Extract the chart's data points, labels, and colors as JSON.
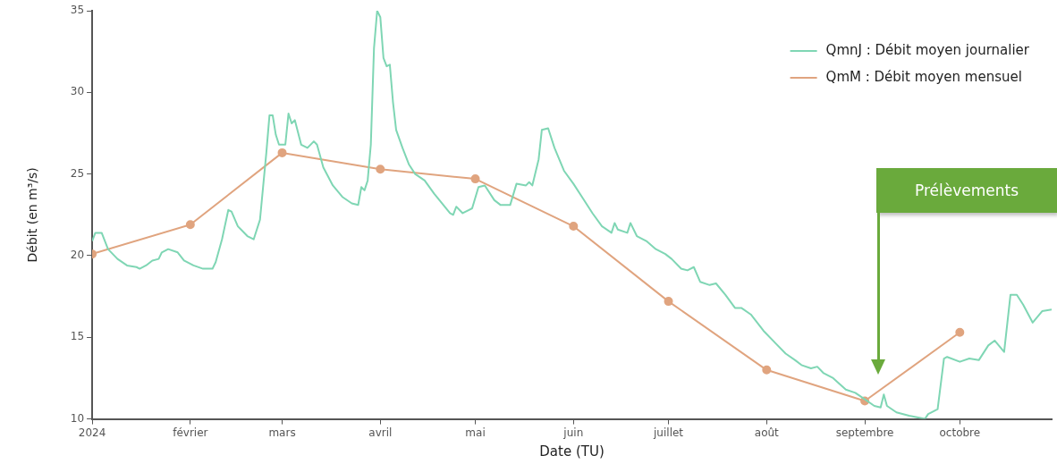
{
  "chart_data": {
    "type": "line",
    "xlabel": "Date (TU)",
    "ylabel": "Débit (en m³/s)",
    "xlim": [
      "2024-01-01",
      "2024-10-30"
    ],
    "xticks": [
      {
        "value": "2024-01-01",
        "label": "2024"
      },
      {
        "value": "2024-02-01",
        "label": "février"
      },
      {
        "value": "2024-03-01",
        "label": "mars"
      },
      {
        "value": "2024-04-01",
        "label": "avril"
      },
      {
        "value": "2024-05-01",
        "label": "mai"
      },
      {
        "value": "2024-06-01",
        "label": "juin"
      },
      {
        "value": "2024-07-01",
        "label": "juillet"
      },
      {
        "value": "2024-08-01",
        "label": "août"
      },
      {
        "value": "2024-09-01",
        "label": "septembre"
      },
      {
        "value": "2024-10-01",
        "label": "octobre"
      }
    ],
    "ylim": [
      10,
      35
    ],
    "yticks": [
      10,
      15,
      20,
      25,
      30,
      35
    ],
    "grid": false,
    "legend": "top right",
    "line_style": "solid",
    "annotations": [
      "Prélèvements"
    ],
    "series": [
      {
        "name": "QmnJ : Débit moyen journalier",
        "color": "#7fd6b4",
        "marker": "none",
        "x": [
          "2024-01-01",
          "2024-01-02",
          "2024-01-04",
          "2024-01-06",
          "2024-01-09",
          "2024-01-12",
          "2024-01-15",
          "2024-01-16",
          "2024-01-18",
          "2024-01-20",
          "2024-01-22",
          "2024-01-23",
          "2024-01-25",
          "2024-01-28",
          "2024-01-30",
          "2024-02-02",
          "2024-02-05",
          "2024-02-08",
          "2024-02-09",
          "2024-02-11",
          "2024-02-13",
          "2024-02-14",
          "2024-02-16",
          "2024-02-19",
          "2024-02-21",
          "2024-02-23",
          "2024-02-25",
          "2024-02-26",
          "2024-02-27",
          "2024-02-28",
          "2024-02-29",
          "2024-03-02",
          "2024-03-03",
          "2024-03-04",
          "2024-03-05",
          "2024-03-07",
          "2024-03-09",
          "2024-03-11",
          "2024-03-12",
          "2024-03-14",
          "2024-03-17",
          "2024-03-20",
          "2024-03-23",
          "2024-03-25",
          "2024-03-26",
          "2024-03-27",
          "2024-03-28",
          "2024-03-29",
          "2024-03-30",
          "2024-03-31",
          "2024-04-01",
          "2024-04-02",
          "2024-04-03",
          "2024-04-04",
          "2024-04-05",
          "2024-04-06",
          "2024-04-08",
          "2024-04-10",
          "2024-04-12",
          "2024-04-15",
          "2024-04-18",
          "2024-04-23",
          "2024-04-24",
          "2024-04-25",
          "2024-04-27",
          "2024-04-29",
          "2024-04-30",
          "2024-05-02",
          "2024-05-04",
          "2024-05-07",
          "2024-05-09",
          "2024-05-12",
          "2024-05-14",
          "2024-05-17",
          "2024-05-18",
          "2024-05-19",
          "2024-05-21",
          "2024-05-22",
          "2024-05-24",
          "2024-05-26",
          "2024-05-29",
          "2024-06-01",
          "2024-06-04",
          "2024-06-07",
          "2024-06-10",
          "2024-06-13",
          "2024-06-14",
          "2024-06-15",
          "2024-06-18",
          "2024-06-19",
          "2024-06-21",
          "2024-06-24",
          "2024-06-27",
          "2024-06-30",
          "2024-07-02",
          "2024-07-05",
          "2024-07-07",
          "2024-07-09",
          "2024-07-11",
          "2024-07-14",
          "2024-07-16",
          "2024-07-19",
          "2024-07-22",
          "2024-07-24",
          "2024-07-27",
          "2024-07-31",
          "2024-08-04",
          "2024-08-07",
          "2024-08-10",
          "2024-08-12",
          "2024-08-15",
          "2024-08-17",
          "2024-08-19",
          "2024-08-22",
          "2024-08-26",
          "2024-08-29",
          "2024-09-01",
          "2024-09-04",
          "2024-09-06",
          "2024-09-07",
          "2024-09-08",
          "2024-09-11",
          "2024-09-15",
          "2024-09-20",
          "2024-09-21",
          "2024-09-22",
          "2024-09-24",
          "2024-09-26",
          "2024-09-27",
          "2024-10-01",
          "2024-10-04",
          "2024-10-07",
          "2024-10-10",
          "2024-10-12",
          "2024-10-15",
          "2024-10-17",
          "2024-10-19",
          "2024-10-21",
          "2024-10-24",
          "2024-10-27",
          "2024-10-30"
        ],
        "values": [
          20.9,
          21.4,
          21.4,
          20.4,
          19.8,
          19.4,
          19.3,
          19.2,
          19.4,
          19.7,
          19.8,
          20.2,
          20.4,
          20.2,
          19.7,
          19.4,
          19.2,
          19.2,
          19.6,
          21.0,
          22.8,
          22.7,
          21.8,
          21.2,
          21.0,
          22.2,
          26.3,
          28.6,
          28.6,
          27.4,
          26.8,
          26.8,
          28.7,
          28.1,
          28.3,
          26.8,
          26.6,
          27.0,
          26.8,
          25.4,
          24.3,
          23.6,
          23.2,
          23.1,
          24.2,
          24.0,
          24.6,
          26.8,
          32.7,
          35.0,
          34.6,
          32.1,
          31.6,
          31.7,
          29.4,
          27.7,
          26.6,
          25.6,
          25.0,
          24.6,
          23.8,
          22.6,
          22.5,
          23.0,
          22.6,
          22.8,
          22.9,
          24.2,
          24.3,
          23.4,
          23.1,
          23.1,
          24.4,
          24.3,
          24.5,
          24.3,
          25.9,
          27.7,
          27.8,
          26.6,
          25.2,
          24.4,
          23.5,
          22.6,
          21.8,
          21.4,
          22.0,
          21.6,
          21.4,
          22.0,
          21.2,
          20.9,
          20.4,
          20.1,
          19.8,
          19.2,
          19.1,
          19.3,
          18.4,
          18.2,
          18.3,
          17.6,
          16.8,
          16.8,
          16.4,
          15.4,
          14.6,
          14.0,
          13.6,
          13.3,
          13.1,
          13.2,
          12.8,
          12.5,
          11.8,
          11.6,
          11.2,
          10.8,
          10.7,
          11.5,
          10.8,
          10.4,
          10.2,
          10.0,
          10.3,
          10.4,
          10.6,
          13.7,
          13.8,
          13.5,
          13.7,
          13.6,
          14.5,
          14.8,
          14.1,
          17.6,
          17.6,
          17.0,
          15.9,
          16.6,
          16.7
        ]
      },
      {
        "name": "QmM : Débit moyen mensuel",
        "color": "#e0a47f",
        "marker": "circle",
        "x": [
          "2024-01-01",
          "2024-02-01",
          "2024-03-01",
          "2024-04-01",
          "2024-05-01",
          "2024-06-01",
          "2024-07-01",
          "2024-08-01",
          "2024-09-01",
          "2024-10-01"
        ],
        "values": [
          20.1,
          21.9,
          26.3,
          25.3,
          24.7,
          21.8,
          17.2,
          13.0,
          11.1,
          15.3
        ]
      }
    ]
  }
}
